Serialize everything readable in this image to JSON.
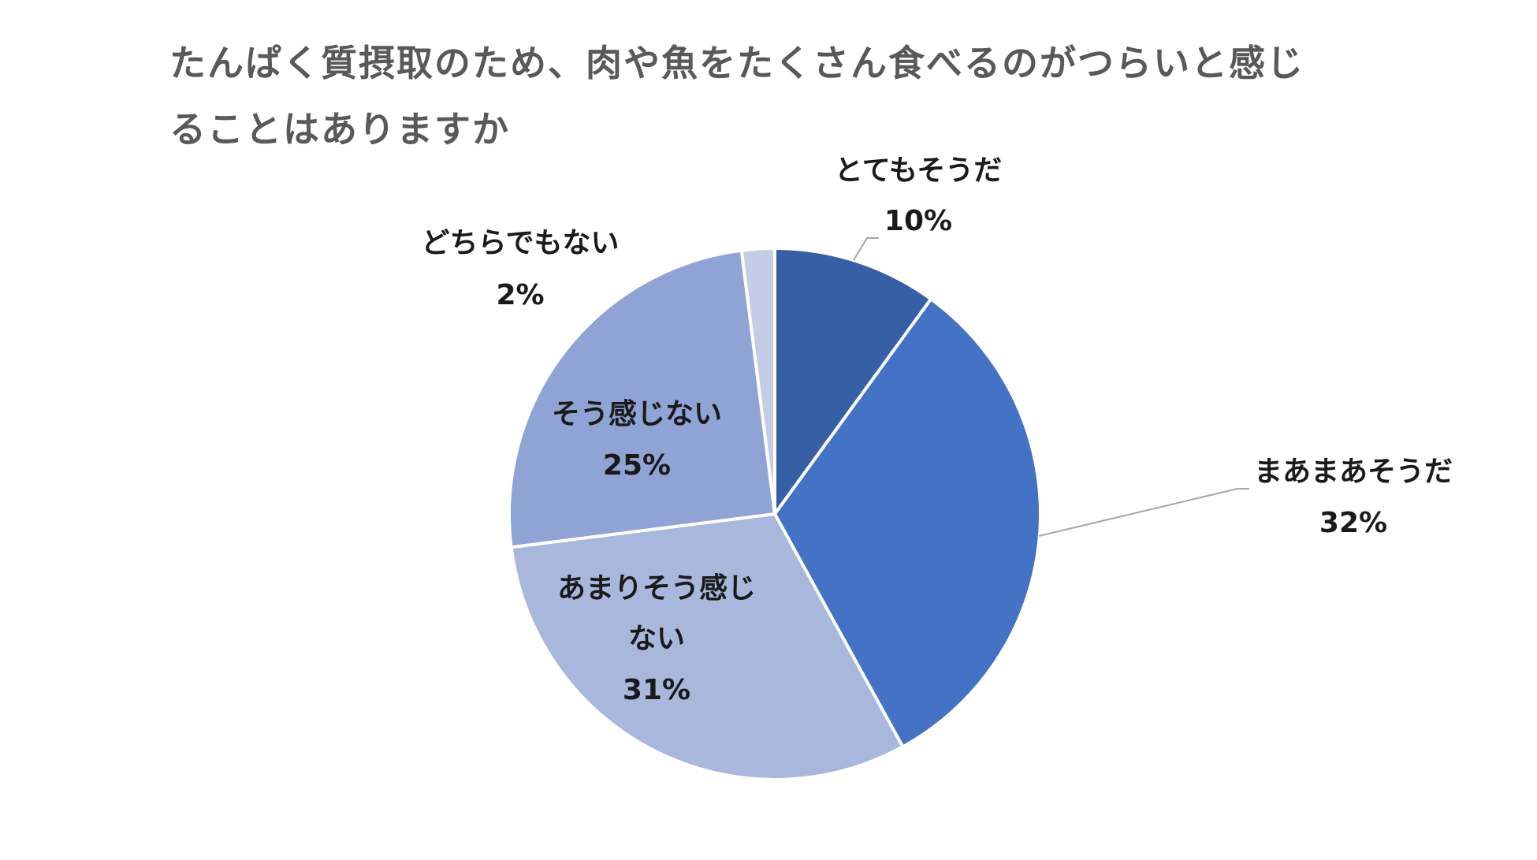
{
  "chart_data": {
    "type": "pie",
    "title_lines": [
      "たんぱく質摂取のため、肉や魚をたくさん食べるのがつらいと感じ",
      "ることはありますか"
    ],
    "slices": [
      {
        "label": "とてもそうだ",
        "value": 10,
        "display": "10%",
        "color": "#365FA5"
      },
      {
        "label": "まあまあそうだ",
        "value": 32,
        "display": "32%",
        "color": "#4472C4"
      },
      {
        "label": "あまりそう感じない",
        "value": 31,
        "display": "31%",
        "color": "#A9B7DC"
      },
      {
        "label": "そう感じない",
        "value": 25,
        "display": "25%",
        "color": "#8FA3D4"
      },
      {
        "label": "どちらでもない",
        "value": 2,
        "display": "2%",
        "color": "#C4CDE6"
      }
    ],
    "start": "12 o'clock",
    "direction": "clockwise",
    "legend": "none"
  }
}
